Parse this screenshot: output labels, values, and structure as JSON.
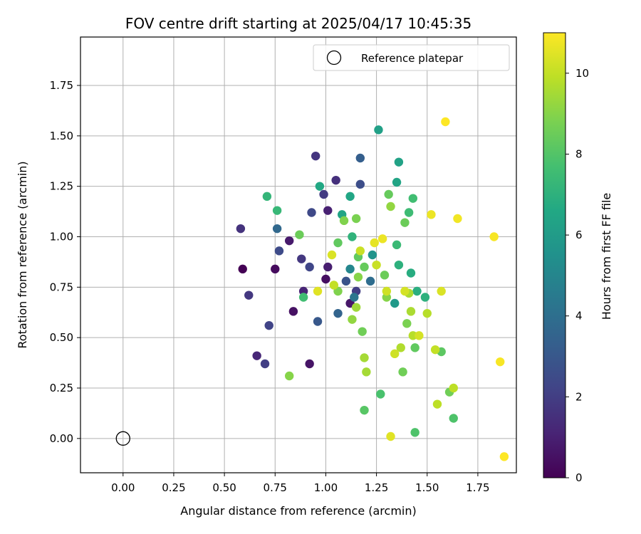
{
  "chart_data": {
    "type": "scatter",
    "title": "FOV centre drift starting at 2025/04/17 10:45:35",
    "xlabel": "Angular distance from reference (arcmin)",
    "ylabel": "Rotation from reference (arcmin)",
    "xlim": [
      -0.21,
      1.94
    ],
    "ylim": [
      -0.17,
      1.99
    ],
    "xticks": [
      "0.00",
      "0.25",
      "0.50",
      "0.75",
      "1.00",
      "1.25",
      "1.50",
      "1.75"
    ],
    "yticks": [
      "0.00",
      "0.25",
      "0.50",
      "0.75",
      "1.00",
      "1.25",
      "1.50",
      "1.75"
    ],
    "grid": true,
    "legend": {
      "placement": "top-right",
      "entries": [
        "Reference platepar"
      ]
    },
    "colorbar": {
      "label": "Hours from first FF file",
      "range": [
        0,
        11
      ],
      "ticks": [
        "0",
        "2",
        "4",
        "6",
        "8",
        "10"
      ],
      "colormap": "viridis"
    },
    "reference_point": {
      "x": 0.0,
      "y": 0.0,
      "marker": "hollow-circle",
      "color": "#000000"
    },
    "series": [
      {
        "name": "FOV centre",
        "points": [
          {
            "x": 0.59,
            "y": 0.84,
            "h": 0.0
          },
          {
            "x": 0.75,
            "y": 0.84,
            "h": 0.3
          },
          {
            "x": 0.84,
            "y": 0.63,
            "h": 0.5
          },
          {
            "x": 0.92,
            "y": 0.37,
            "h": 0.6
          },
          {
            "x": 1.0,
            "y": 0.79,
            "h": 0.4
          },
          {
            "x": 1.12,
            "y": 0.67,
            "h": 0.7
          },
          {
            "x": 0.82,
            "y": 0.98,
            "h": 0.8
          },
          {
            "x": 1.01,
            "y": 0.85,
            "h": 0.9
          },
          {
            "x": 1.01,
            "y": 1.13,
            "h": 1.0
          },
          {
            "x": 0.66,
            "y": 0.41,
            "h": 1.2
          },
          {
            "x": 0.89,
            "y": 0.73,
            "h": 1.1
          },
          {
            "x": 1.05,
            "y": 1.28,
            "h": 1.5
          },
          {
            "x": 0.58,
            "y": 1.04,
            "h": 1.6
          },
          {
            "x": 0.95,
            "y": 1.4,
            "h": 1.7
          },
          {
            "x": 0.88,
            "y": 0.89,
            "h": 1.8
          },
          {
            "x": 0.62,
            "y": 0.71,
            "h": 1.8
          },
          {
            "x": 0.7,
            "y": 0.37,
            "h": 2.0
          },
          {
            "x": 0.99,
            "y": 1.21,
            "h": 1.9
          },
          {
            "x": 1.15,
            "y": 0.73,
            "h": 2.0
          },
          {
            "x": 0.72,
            "y": 0.56,
            "h": 2.2
          },
          {
            "x": 0.92,
            "y": 0.85,
            "h": 2.3
          },
          {
            "x": 0.77,
            "y": 0.93,
            "h": 2.5
          },
          {
            "x": 0.93,
            "y": 1.12,
            "h": 2.4
          },
          {
            "x": 1.17,
            "y": 1.26,
            "h": 2.6
          },
          {
            "x": 0.96,
            "y": 0.58,
            "h": 3.0
          },
          {
            "x": 1.1,
            "y": 0.78,
            "h": 2.8
          },
          {
            "x": 1.17,
            "y": 1.39,
            "h": 3.3
          },
          {
            "x": 1.06,
            "y": 0.62,
            "h": 3.5
          },
          {
            "x": 0.76,
            "y": 1.04,
            "h": 3.7
          },
          {
            "x": 1.22,
            "y": 0.78,
            "h": 3.9
          },
          {
            "x": 1.14,
            "y": 0.7,
            "h": 4.3
          },
          {
            "x": 1.12,
            "y": 0.84,
            "h": 5.0
          },
          {
            "x": 1.23,
            "y": 0.91,
            "h": 5.6
          },
          {
            "x": 1.34,
            "y": 0.67,
            "h": 5.9
          },
          {
            "x": 1.26,
            "y": 1.53,
            "h": 6.2
          },
          {
            "x": 1.36,
            "y": 1.37,
            "h": 6.3
          },
          {
            "x": 1.35,
            "y": 1.27,
            "h": 6.4
          },
          {
            "x": 0.97,
            "y": 1.25,
            "h": 6.6
          },
          {
            "x": 1.08,
            "y": 1.11,
            "h": 6.4
          },
          {
            "x": 1.12,
            "y": 1.2,
            "h": 6.5
          },
          {
            "x": 1.42,
            "y": 0.82,
            "h": 6.8
          },
          {
            "x": 1.45,
            "y": 0.73,
            "h": 6.9
          },
          {
            "x": 1.49,
            "y": 0.7,
            "h": 7.0
          },
          {
            "x": 1.36,
            "y": 0.86,
            "h": 7.0
          },
          {
            "x": 1.13,
            "y": 1.0,
            "h": 7.1
          },
          {
            "x": 0.71,
            "y": 1.2,
            "h": 7.2
          },
          {
            "x": 0.76,
            "y": 1.13,
            "h": 7.3
          },
          {
            "x": 1.35,
            "y": 0.96,
            "h": 7.4
          },
          {
            "x": 1.41,
            "y": 1.12,
            "h": 7.5
          },
          {
            "x": 1.43,
            "y": 1.19,
            "h": 7.6
          },
          {
            "x": 0.89,
            "y": 0.7,
            "h": 7.6
          },
          {
            "x": 1.27,
            "y": 0.22,
            "h": 7.8
          },
          {
            "x": 1.44,
            "y": 0.03,
            "h": 7.9
          },
          {
            "x": 1.63,
            "y": 0.1,
            "h": 7.9
          },
          {
            "x": 1.19,
            "y": 0.14,
            "h": 8.1
          },
          {
            "x": 1.57,
            "y": 0.43,
            "h": 8.2
          },
          {
            "x": 1.44,
            "y": 0.45,
            "h": 8.3
          },
          {
            "x": 1.06,
            "y": 0.97,
            "h": 8.3
          },
          {
            "x": 1.16,
            "y": 0.9,
            "h": 8.3
          },
          {
            "x": 1.19,
            "y": 0.85,
            "h": 8.4
          },
          {
            "x": 1.31,
            "y": 1.21,
            "h": 8.4
          },
          {
            "x": 1.39,
            "y": 1.07,
            "h": 8.5
          },
          {
            "x": 1.29,
            "y": 0.81,
            "h": 8.5
          },
          {
            "x": 1.18,
            "y": 0.53,
            "h": 8.6
          },
          {
            "x": 1.38,
            "y": 0.33,
            "h": 8.6
          },
          {
            "x": 1.61,
            "y": 0.23,
            "h": 8.6
          },
          {
            "x": 1.4,
            "y": 0.57,
            "h": 8.8
          },
          {
            "x": 1.15,
            "y": 1.09,
            "h": 8.8
          },
          {
            "x": 1.09,
            "y": 1.08,
            "h": 8.9
          },
          {
            "x": 0.87,
            "y": 1.01,
            "h": 8.5
          },
          {
            "x": 1.06,
            "y": 0.73,
            "h": 8.9
          },
          {
            "x": 1.16,
            "y": 0.8,
            "h": 9.0
          },
          {
            "x": 1.3,
            "y": 0.7,
            "h": 9.0
          },
          {
            "x": 0.82,
            "y": 0.31,
            "h": 9.0
          },
          {
            "x": 1.32,
            "y": 1.15,
            "h": 9.2
          },
          {
            "x": 1.13,
            "y": 0.59,
            "h": 9.2
          },
          {
            "x": 1.15,
            "y": 0.65,
            "h": 9.4
          },
          {
            "x": 1.2,
            "y": 0.33,
            "h": 9.5
          },
          {
            "x": 1.19,
            "y": 0.4,
            "h": 9.5
          },
          {
            "x": 1.41,
            "y": 0.72,
            "h": 9.6
          },
          {
            "x": 1.42,
            "y": 0.63,
            "h": 9.6
          },
          {
            "x": 1.37,
            "y": 0.45,
            "h": 9.7
          },
          {
            "x": 1.43,
            "y": 0.51,
            "h": 9.8
          },
          {
            "x": 1.5,
            "y": 0.62,
            "h": 9.8
          },
          {
            "x": 1.55,
            "y": 0.17,
            "h": 9.9
          },
          {
            "x": 1.63,
            "y": 0.25,
            "h": 9.9
          },
          {
            "x": 1.54,
            "y": 0.44,
            "h": 10.0
          },
          {
            "x": 1.04,
            "y": 0.76,
            "h": 10.0
          },
          {
            "x": 1.17,
            "y": 0.93,
            "h": 10.1
          },
          {
            "x": 1.25,
            "y": 0.86,
            "h": 10.1
          },
          {
            "x": 1.3,
            "y": 0.73,
            "h": 10.2
          },
          {
            "x": 1.34,
            "y": 0.42,
            "h": 10.2
          },
          {
            "x": 1.46,
            "y": 0.51,
            "h": 10.3
          },
          {
            "x": 1.39,
            "y": 0.73,
            "h": 10.3
          },
          {
            "x": 1.57,
            "y": 0.73,
            "h": 10.4
          },
          {
            "x": 1.03,
            "y": 0.91,
            "h": 10.4
          },
          {
            "x": 0.96,
            "y": 0.73,
            "h": 10.5
          },
          {
            "x": 1.32,
            "y": 0.01,
            "h": 10.5
          },
          {
            "x": 1.24,
            "y": 0.97,
            "h": 10.6
          },
          {
            "x": 1.28,
            "y": 0.99,
            "h": 10.7
          },
          {
            "x": 1.52,
            "y": 1.11,
            "h": 10.7
          },
          {
            "x": 1.65,
            "y": 1.09,
            "h": 10.8
          },
          {
            "x": 1.83,
            "y": 1.0,
            "h": 10.9
          },
          {
            "x": 1.86,
            "y": 0.38,
            "h": 10.9
          },
          {
            "x": 1.88,
            "y": -0.09,
            "h": 11.0
          },
          {
            "x": 1.59,
            "y": 1.57,
            "h": 11.0
          }
        ]
      }
    ]
  }
}
